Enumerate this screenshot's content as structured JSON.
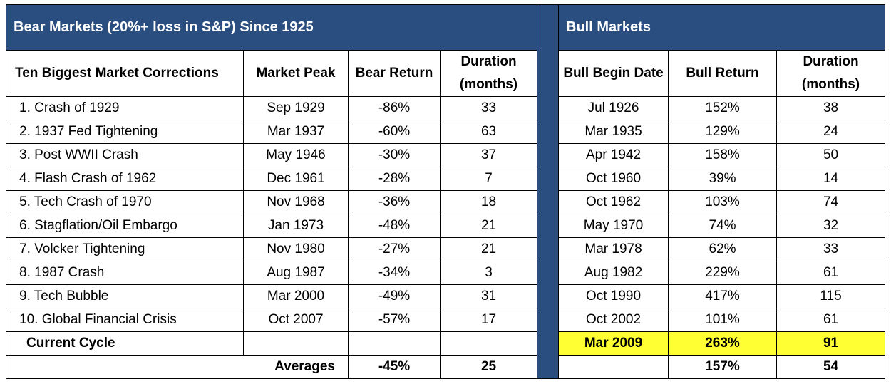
{
  "bear_title": "Bear Markets (20%+ loss in S&P) Since 1925",
  "bull_title": "Bull Markets",
  "bear_headers": {
    "name": "Ten Biggest Market Corrections",
    "peak": "Market Peak",
    "return": "Bear Return",
    "duration": "Duration (months)"
  },
  "bull_headers": {
    "begin": "Bull Begin Date",
    "return": "Bull Return",
    "duration": "Duration (months)"
  },
  "rows": [
    {
      "name": "1. Crash of 1929",
      "peak": "Sep 1929",
      "bear_return": "-86%",
      "bear_duration": "33",
      "bull_begin": "Jul 1926",
      "bull_return": "152%",
      "bull_duration": "38"
    },
    {
      "name": "2. 1937 Fed Tightening",
      "peak": "Mar 1937",
      "bear_return": "-60%",
      "bear_duration": "63",
      "bull_begin": "Mar 1935",
      "bull_return": "129%",
      "bull_duration": "24"
    },
    {
      "name": "3. Post WWII Crash",
      "peak": "May 1946",
      "bear_return": "-30%",
      "bear_duration": "37",
      "bull_begin": "Apr 1942",
      "bull_return": "158%",
      "bull_duration": "50"
    },
    {
      "name": "4. Flash Crash of 1962",
      "peak": "Dec 1961",
      "bear_return": "-28%",
      "bear_duration": "7",
      "bull_begin": "Oct 1960",
      "bull_return": "39%",
      "bull_duration": "14"
    },
    {
      "name": "5. Tech Crash of 1970",
      "peak": "Nov 1968",
      "bear_return": "-36%",
      "bear_duration": "18",
      "bull_begin": "Oct 1962",
      "bull_return": "103%",
      "bull_duration": "74"
    },
    {
      "name": "6. Stagflation/Oil Embargo",
      "peak": "Jan 1973",
      "bear_return": "-48%",
      "bear_duration": "21",
      "bull_begin": "May 1970",
      "bull_return": "74%",
      "bull_duration": "32"
    },
    {
      "name": "7. Volcker Tightening",
      "peak": "Nov 1980",
      "bear_return": "-27%",
      "bear_duration": "21",
      "bull_begin": "Mar 1978",
      "bull_return": "62%",
      "bull_duration": "33"
    },
    {
      "name": "8. 1987 Crash",
      "peak": "Aug 1987",
      "bear_return": "-34%",
      "bear_duration": "3",
      "bull_begin": "Aug 1982",
      "bull_return": "229%",
      "bull_duration": "61"
    },
    {
      "name": "9. Tech Bubble",
      "peak": "Mar 2000",
      "bear_return": "-49%",
      "bear_duration": "31",
      "bull_begin": "Oct 1990",
      "bull_return": "417%",
      "bull_duration": "115"
    },
    {
      "name": "10. Global Financial Crisis",
      "peak": "Oct 2007",
      "bear_return": "-57%",
      "bear_duration": "17",
      "bull_begin": "Oct 2002",
      "bull_return": "101%",
      "bull_duration": "61"
    }
  ],
  "current": {
    "label": "Current Cycle",
    "bull_begin": "Mar 2009",
    "bull_return": "263%",
    "bull_duration": "91"
  },
  "averages": {
    "label": "Averages",
    "bear_return": "-45%",
    "bear_duration": "25",
    "bull_return": "157%",
    "bull_duration": "54"
  },
  "colors": {
    "header_blue": "#2b4e80",
    "highlight": "#ffff33"
  }
}
